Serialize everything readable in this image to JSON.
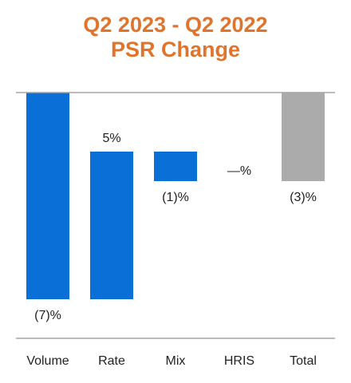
{
  "colors": {
    "title": "#E0742C",
    "bar_blue": "#0A6FD6",
    "bar_gray": "#ABABAB",
    "axis": "#A6A6A6",
    "text": "#222222"
  },
  "chart_data": {
    "type": "bar",
    "title": "Q2 2023 - Q2 2022",
    "subtitle": "PSR Change",
    "xlabel": "",
    "ylabel": "",
    "categories": [
      "Volume",
      "Rate",
      "Mix",
      "HRIS",
      "Total"
    ],
    "waterfall": true,
    "bars": [
      {
        "category": "Volume",
        "start": 0,
        "end": -7,
        "label": "(7)%",
        "label_pos": "below",
        "color_key": "bar_blue"
      },
      {
        "category": "Rate",
        "start": -7,
        "end": -2,
        "label": "5%",
        "label_pos": "above",
        "color_key": "bar_blue"
      },
      {
        "category": "Mix",
        "start": -2,
        "end": -3,
        "label": "(1)%",
        "label_pos": "below",
        "color_key": "bar_blue"
      },
      {
        "category": "HRIS",
        "start": -3,
        "end": -3,
        "label": "—%",
        "label_pos": "mid",
        "color_key": "bar_blue"
      },
      {
        "category": "Total",
        "start": 0,
        "end": -3,
        "label": "(3)%",
        "label_pos": "below",
        "color_key": "bar_gray"
      }
    ],
    "values": [
      -7,
      5,
      -1,
      0,
      -3
    ],
    "ylim": [
      -8.1,
      0
    ],
    "grid": false,
    "legend": "none"
  }
}
